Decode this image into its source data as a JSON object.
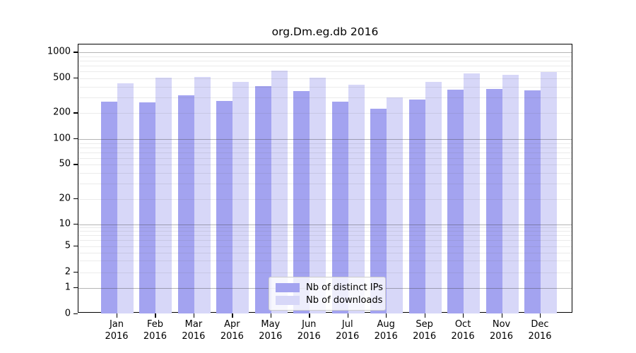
{
  "chart_data": {
    "type": "bar",
    "title": "org.Dm.eg.db 2016",
    "categories": [
      "Jan",
      "Feb",
      "Mar",
      "Apr",
      "May",
      "Jun",
      "Jul",
      "Aug",
      "Sep",
      "Oct",
      "Nov",
      "Dec"
    ],
    "category_year": "2016",
    "series": [
      {
        "name": "Nb of distinct IPs",
        "color": "#a3a3f0",
        "values": [
          270,
          268,
          320,
          276,
          410,
          356,
          271,
          225,
          286,
          368,
          375,
          363
        ]
      },
      {
        "name": "Nb of downloads",
        "color": "#d7d7f8",
        "values": [
          440,
          512,
          515,
          456,
          610,
          505,
          420,
          300,
          456,
          570,
          549,
          595
        ]
      }
    ],
    "y_axis": {
      "scale": "symlog",
      "tick_labels": [
        "1000",
        "500",
        "200",
        "100",
        "50",
        "20",
        "10",
        "5",
        "2",
        "1",
        "0"
      ],
      "tick_values": [
        1000,
        500,
        200,
        100,
        50,
        20,
        10,
        5,
        2,
        1,
        0
      ],
      "range": [
        0,
        1000
      ],
      "major_grid_values": [
        1,
        10,
        100,
        1000
      ]
    },
    "grid": true,
    "legend_position": "lower center"
  },
  "colors": {
    "background": "#ffffff",
    "axis_frame": "#000000",
    "bar_distinct_ips": "#a3a3f0",
    "bar_downloads": "#d7d7f8",
    "legend_border": "#cccccc"
  }
}
